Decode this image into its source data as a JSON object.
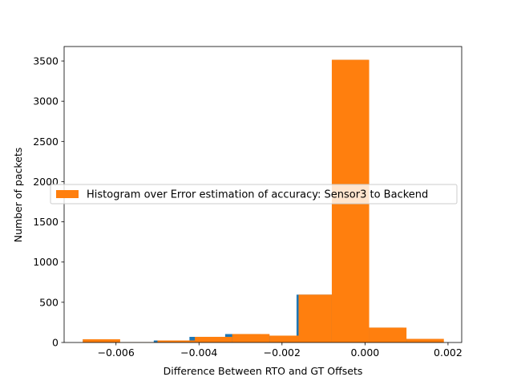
{
  "chart_data": {
    "type": "bar",
    "title": "",
    "xlabel": "Difference Between RTO and GT Offsets",
    "ylabel": "Number of packets",
    "xlim": [
      -0.00725,
      0.00233
    ],
    "ylim": [
      0,
      3680
    ],
    "xticks": [
      {
        "value": -0.006,
        "label": "−0.006"
      },
      {
        "value": -0.004,
        "label": "−0.004"
      },
      {
        "value": -0.002,
        "label": "−0.002"
      },
      {
        "value": 0.0,
        "label": "0.000"
      },
      {
        "value": 0.002,
        "label": "0.002"
      }
    ],
    "yticks": [
      {
        "value": 0,
        "label": "0"
      },
      {
        "value": 500,
        "label": "500"
      },
      {
        "value": 1000,
        "label": "1000"
      },
      {
        "value": 1500,
        "label": "1500"
      },
      {
        "value": 2000,
        "label": "2000"
      },
      {
        "value": 2500,
        "label": "2500"
      },
      {
        "value": 3000,
        "label": "3000"
      },
      {
        "value": 3500,
        "label": "3500"
      }
    ],
    "grid": false,
    "legend_position": "center",
    "series": [
      {
        "name": "",
        "color": "#1f77b4",
        "bins": [
          {
            "x0": -0.0068,
            "x1": -0.00594,
            "count": 40
          },
          {
            "x0": -0.00594,
            "x1": -0.00509,
            "count": 3
          },
          {
            "x0": -0.00509,
            "x1": -0.00423,
            "count": 25
          },
          {
            "x0": -0.00423,
            "x1": -0.00337,
            "count": 70
          },
          {
            "x0": -0.00337,
            "x1": -0.00251,
            "count": 105
          },
          {
            "x0": -0.00251,
            "x1": -0.00165,
            "count": 85
          },
          {
            "x0": -0.00165,
            "x1": -0.00079,
            "count": 595
          },
          {
            "x0": -0.00079,
            "x1": 7e-05,
            "count": 3515
          },
          {
            "x0": 7e-05,
            "x1": 0.00093,
            "count": 185
          },
          {
            "x0": 0.00093,
            "x1": 0.00179,
            "count": 45
          }
        ]
      },
      {
        "name": "Histogram over Error estimation of accuracy: Sensor3 to Backend",
        "color": "#ff7f0e",
        "bins": [
          {
            "x0": -0.0068,
            "x1": -0.0059,
            "count": 40
          },
          {
            "x0": -0.0059,
            "x1": -0.005,
            "count": 3
          },
          {
            "x0": -0.005,
            "x1": -0.0041,
            "count": 25
          },
          {
            "x0": -0.0041,
            "x1": -0.0032,
            "count": 70
          },
          {
            "x0": -0.0032,
            "x1": -0.0023,
            "count": 105
          },
          {
            "x0": -0.0023,
            "x1": -0.0016,
            "count": 85
          },
          {
            "x0": -0.0016,
            "x1": -0.0008,
            "count": 595
          },
          {
            "x0": -0.0008,
            "x1": 0.0001,
            "count": 3515
          },
          {
            "x0": 0.0001,
            "x1": 0.001,
            "count": 185
          },
          {
            "x0": 0.001,
            "x1": 0.0019,
            "count": 45
          }
        ]
      }
    ]
  }
}
